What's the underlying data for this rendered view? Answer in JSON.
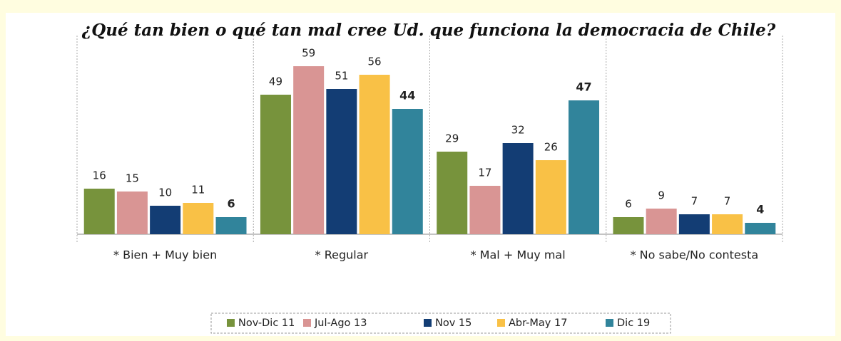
{
  "chart_data": {
    "type": "bar",
    "title": "¿Qué tan bien o qué tan mal cree Ud. que funciona la democracia de Chile?",
    "categories": [
      "* Bien + Muy bien",
      "* Regular",
      "* Mal + Muy mal",
      "* No sabe/No contesta"
    ],
    "series": [
      {
        "name": "Nov-Dic 11",
        "color": "#77933c",
        "values": [
          16,
          49,
          29,
          6
        ]
      },
      {
        "name": "Jul-Ago 13",
        "color": "#d99594",
        "values": [
          15,
          59,
          17,
          9
        ]
      },
      {
        "name": "Nov 15",
        "color": "#133d74",
        "values": [
          10,
          51,
          32,
          7
        ]
      },
      {
        "name": "Abr-May 17",
        "color": "#f9c146",
        "values": [
          11,
          56,
          26,
          7
        ]
      },
      {
        "name": "Dic 19",
        "color": "#31849b",
        "values": [
          6,
          44,
          47,
          4
        ]
      }
    ],
    "legend": "bottom"
  }
}
